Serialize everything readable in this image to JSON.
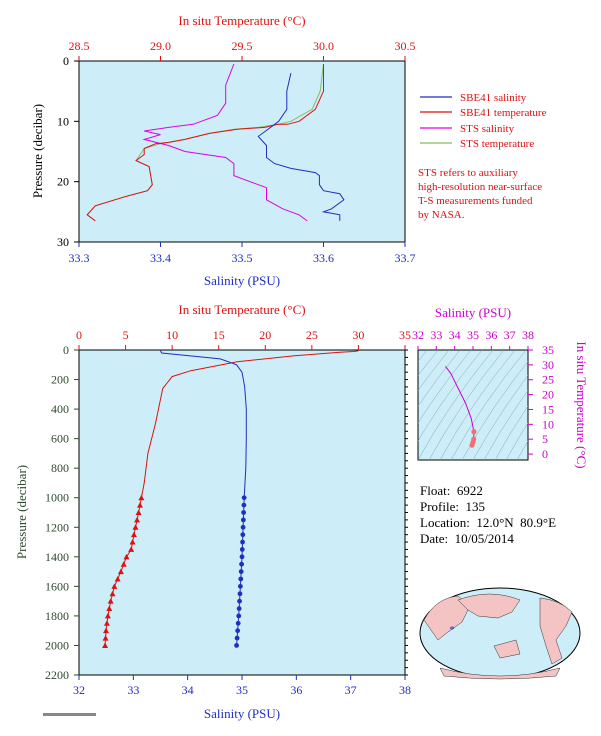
{
  "top_chart": {
    "top_axis_label": "In situ Temperature (°C)",
    "bottom_axis_label": "Salinity (PSU)",
    "left_axis_label": "Pressure (decibar)",
    "temp_ticks": [
      "28.5",
      "29.0",
      "29.5",
      "30.0",
      "30.5"
    ],
    "sal_ticks": [
      "33.3",
      "33.4",
      "33.5",
      "33.6",
      "33.7"
    ],
    "pres_ticks": [
      "0",
      "10",
      "20",
      "30"
    ],
    "legend": [
      {
        "label": "SBE41 salinity",
        "color": "#1f2fbf"
      },
      {
        "label": "SBE41 temperature",
        "color": "#dd1111"
      },
      {
        "label": "STS salinity",
        "color": "#e000e0"
      },
      {
        "label": "STS temperature",
        "color": "#88bb66"
      }
    ],
    "note_lines": [
      "STS refers to auxiliary",
      "high-resolution near-surface",
      "T-S measurements funded",
      "by NASA."
    ]
  },
  "bottom_chart": {
    "top_axis_label": "In situ Temperature (°C)",
    "bottom_axis_label": "Salinity (PSU)",
    "left_axis_label": "Pressure (decibar)",
    "temp_ticks": [
      "0",
      "5",
      "10",
      "15",
      "20",
      "25",
      "30",
      "35"
    ],
    "sal_ticks": [
      "32",
      "33",
      "34",
      "35",
      "36",
      "37",
      "38"
    ],
    "pres_ticks": [
      "0",
      "200",
      "400",
      "600",
      "800",
      "1000",
      "1200",
      "1400",
      "1600",
      "1800",
      "2000",
      "2200"
    ]
  },
  "ts_chart": {
    "top_axis_label": "Salinity (PSU)",
    "right_axis_label": "In situ Temperature (°C)",
    "sal_ticks": [
      "32",
      "33",
      "34",
      "35",
      "36",
      "37",
      "38"
    ],
    "temp_ticks": [
      "0",
      "5",
      "10",
      "15",
      "20",
      "25",
      "30",
      "35"
    ]
  },
  "info": {
    "float": "Float:  6922",
    "profile": "Profile:  135",
    "location": "Location:  12.0°N  80.9°E",
    "date": "Date:  10/05/2014"
  },
  "colors": {
    "plot_bg": "#cdeef8",
    "temperature": "#dd1111",
    "salinity": "#1f2fbf",
    "sts_salinity": "#e000e0",
    "sts_temperature": "#88bb66",
    "ts_accent": "#cc00cc",
    "pressure_axis": "#2e4a2e"
  },
  "chart_data": [
    {
      "type": "line",
      "title": "",
      "xlabel_top": "In situ Temperature (°C)",
      "xlabel": "Salinity (PSU)",
      "ylabel": "Pressure (decibar)",
      "temp_range": [
        28.5,
        30.5
      ],
      "sal_range": [
        33.3,
        33.7
      ],
      "pressure_range": [
        0,
        30
      ],
      "legend_position": "right",
      "series": [
        {
          "name": "SBE41 salinity",
          "axis": "salinity",
          "points": [
            [
              33.56,
              2
            ],
            [
              33.555,
              5
            ],
            [
              33.555,
              8
            ],
            [
              33.545,
              10
            ],
            [
              33.53,
              11.5
            ],
            [
              33.52,
              12.5
            ],
            [
              33.53,
              14
            ],
            [
              33.53,
              16
            ],
            [
              33.54,
              17
            ],
            [
              33.56,
              17.8
            ],
            [
              33.59,
              18.5
            ],
            [
              33.595,
              19
            ],
            [
              33.595,
              20.5
            ],
            [
              33.6,
              21.5
            ],
            [
              33.62,
              22
            ],
            [
              33.625,
              23
            ],
            [
              33.61,
              24.5
            ],
            [
              33.6,
              25
            ],
            [
              33.62,
              25.5
            ],
            [
              33.62,
              26.5
            ]
          ]
        },
        {
          "name": "SBE41 temperature",
          "axis": "temperature",
          "points": [
            [
              30.0,
              0.5
            ],
            [
              30.0,
              5
            ],
            [
              29.95,
              8
            ],
            [
              29.85,
              10
            ],
            [
              29.78,
              10.5
            ],
            [
              29.72,
              10.5
            ],
            [
              29.64,
              11
            ],
            [
              29.47,
              11.3
            ],
            [
              29.3,
              12
            ],
            [
              29.15,
              13
            ],
            [
              29.05,
              13.5
            ],
            [
              28.97,
              13.7
            ],
            [
              28.9,
              14.5
            ],
            [
              28.9,
              15.5
            ],
            [
              28.85,
              16.5
            ],
            [
              28.93,
              17.5
            ],
            [
              28.95,
              20.5
            ],
            [
              28.92,
              21.5
            ],
            [
              28.78,
              22.5
            ],
            [
              28.6,
              24
            ],
            [
              28.55,
              25.5
            ],
            [
              28.6,
              26.5
            ]
          ]
        },
        {
          "name": "STS salinity",
          "axis": "salinity",
          "points": [
            [
              33.49,
              0.5
            ],
            [
              33.48,
              4
            ],
            [
              33.48,
              7
            ],
            [
              33.47,
              9
            ],
            [
              33.44,
              10.5
            ],
            [
              33.41,
              11
            ],
            [
              33.38,
              11.6
            ],
            [
              33.4,
              12.2
            ],
            [
              33.38,
              13
            ],
            [
              33.41,
              14
            ],
            [
              33.43,
              15
            ],
            [
              33.48,
              16
            ],
            [
              33.49,
              17
            ],
            [
              33.49,
              19
            ],
            [
              33.51,
              20
            ],
            [
              33.53,
              21
            ],
            [
              33.53,
              23
            ],
            [
              33.55,
              24.5
            ],
            [
              33.57,
              25.5
            ],
            [
              33.58,
              26.5
            ]
          ]
        },
        {
          "name": "STS temperature",
          "axis": "temperature",
          "points": [
            [
              30.0,
              0.5
            ],
            [
              29.98,
              5
            ],
            [
              29.93,
              8
            ],
            [
              29.8,
              10
            ],
            [
              29.72,
              10.5
            ],
            [
              29.6,
              11
            ],
            [
              29.45,
              11.3
            ],
            [
              29.3,
              12
            ],
            [
              29.15,
              13
            ],
            [
              29.0,
              13.7
            ],
            [
              28.9,
              14.5
            ],
            [
              28.85,
              16.5
            ],
            [
              28.93,
              17.5
            ],
            [
              28.95,
              20.5
            ],
            [
              28.92,
              21.5
            ],
            [
              28.78,
              22.5
            ],
            [
              28.6,
              24
            ],
            [
              28.55,
              25.5
            ],
            [
              28.6,
              26.5
            ]
          ]
        }
      ]
    },
    {
      "type": "line",
      "title": "",
      "xlabel_top": "In situ Temperature (°C)",
      "xlabel": "Salinity (PSU)",
      "ylabel": "Pressure (decibar)",
      "temp_range": [
        0,
        35
      ],
      "sal_range": [
        32,
        38
      ],
      "pressure_range": [
        0,
        2200
      ],
      "series": [
        {
          "name": "",
          "axis": "temperature",
          "points": [
            [
              30,
              5
            ],
            [
              29.5,
              10
            ],
            [
              28,
              15
            ],
            [
              23,
              40
            ],
            [
              17,
              80
            ],
            [
              12,
              140
            ],
            [
              10,
              180
            ],
            [
              9.5,
              220
            ],
            [
              9,
              260
            ],
            [
              8.7,
              350
            ],
            [
              8.2,
              500
            ],
            [
              7.4,
              700
            ],
            [
              7,
              900
            ],
            [
              6.7,
              1000
            ],
            [
              6.4,
              1100
            ],
            [
              5.9,
              1250
            ],
            [
              5.6,
              1350
            ],
            [
              5.1,
              1400
            ],
            [
              4.5,
              1500
            ],
            [
              3.8,
              1600
            ],
            [
              3.4,
              1700
            ],
            [
              3.1,
              1800
            ],
            [
              2.9,
              1900
            ],
            [
              2.8,
              2000
            ]
          ]
        },
        {
          "name": "",
          "axis": "salinity",
          "points": [
            [
              33.5,
              5
            ],
            [
              33.52,
              20
            ],
            [
              34.05,
              40
            ],
            [
              34.6,
              60
            ],
            [
              34.9,
              100
            ],
            [
              35.0,
              150
            ],
            [
              35.05,
              250
            ],
            [
              35.08,
              400
            ],
            [
              35.08,
              600
            ],
            [
              35.07,
              800
            ],
            [
              35.04,
              1000
            ],
            [
              35.02,
              1200
            ],
            [
              35.0,
              1400
            ],
            [
              34.97,
              1600
            ],
            [
              34.94,
              1800
            ],
            [
              34.9,
              2000
            ]
          ]
        }
      ]
    },
    {
      "type": "scatter",
      "title": "",
      "xlabel": "Salinity (PSU)",
      "ylabel": "In situ Temperature (°C)",
      "xlim": [
        32,
        38
      ],
      "ylim": [
        -2,
        35
      ],
      "series": [
        {
          "name": "",
          "points": [
            [
              33.5,
              29.5
            ],
            [
              33.8,
              27
            ],
            [
              34.2,
              22
            ],
            [
              34.6,
              17
            ],
            [
              34.9,
              12
            ],
            [
              35.0,
              9
            ],
            [
              35.05,
              7.5
            ],
            [
              35.04,
              5
            ],
            [
              35.0,
              4
            ],
            [
              34.95,
              3
            ]
          ]
        }
      ]
    }
  ]
}
